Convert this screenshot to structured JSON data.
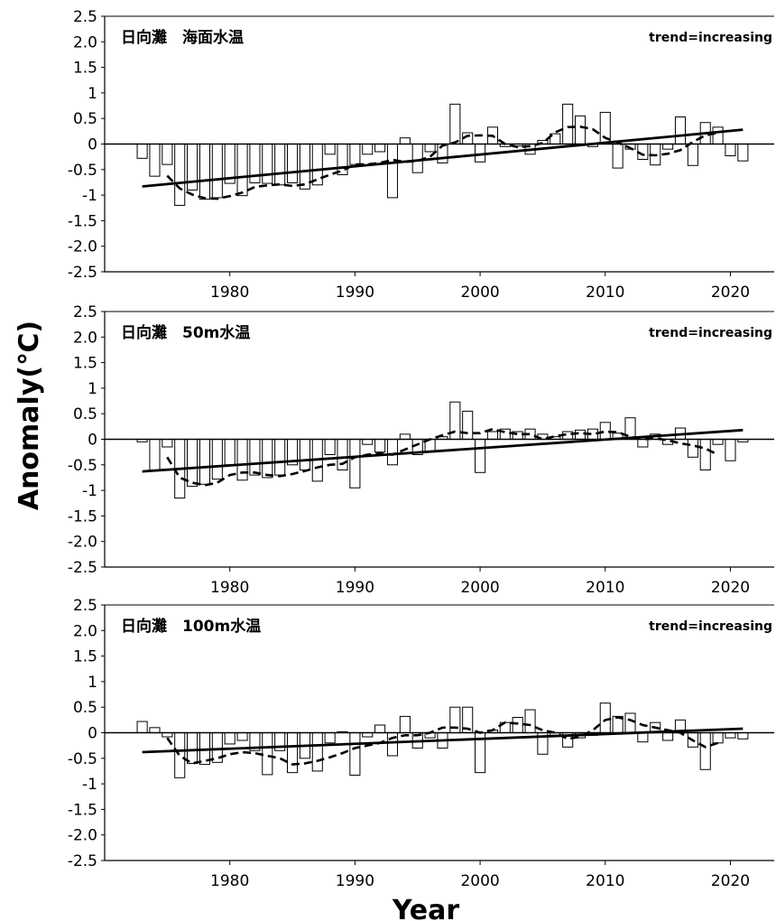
{
  "figure": {
    "ylabel": "Anomaly(℃)",
    "xlabel": "Year"
  },
  "chart_data": [
    {
      "type": "bar",
      "title": "日向灘　海面水温",
      "annotation": "trend=increasing",
      "xlim": [
        1970,
        2023.5
      ],
      "ylim": [
        -2.5,
        2.5
      ],
      "x_ticks": [
        1980,
        1990,
        2000,
        2010,
        2020
      ],
      "y_ticks": [
        2.5,
        2.0,
        1.5,
        1,
        0.5,
        0,
        -0.5,
        -1,
        -1.5,
        -2.0,
        -2.5
      ],
      "y_tick_labels": [
        "2.5",
        "2.0",
        "1.5",
        "1",
        "0.5",
        "0",
        "-0.5",
        "-1",
        "-1.5",
        "-2.0",
        "-2.5"
      ],
      "x": [
        1973,
        1974,
        1975,
        1976,
        1977,
        1978,
        1979,
        1980,
        1981,
        1982,
        1983,
        1984,
        1985,
        1986,
        1987,
        1988,
        1989,
        1990,
        1991,
        1992,
        1993,
        1994,
        1995,
        1996,
        1997,
        1998,
        1999,
        2000,
        2001,
        2002,
        2003,
        2004,
        2005,
        2006,
        2007,
        2008,
        2009,
        2010,
        2011,
        2012,
        2013,
        2014,
        2015,
        2016,
        2017,
        2018,
        2019,
        2020,
        2021
      ],
      "series": [
        {
          "kind": "bar",
          "values": [
            -0.28,
            -0.63,
            -0.4,
            -1.2,
            -0.9,
            -1.08,
            -1.05,
            -0.77,
            -1.01,
            -0.76,
            -0.77,
            -0.8,
            -0.76,
            -0.88,
            -0.8,
            -0.2,
            -0.6,
            -0.4,
            -0.2,
            -0.15,
            -1.05,
            0.12,
            -0.56,
            -0.15,
            -0.37,
            0.78,
            0.22,
            -0.35,
            0.33,
            -0.05,
            -0.04,
            -0.2,
            0.07,
            0.2,
            0.78,
            0.55,
            -0.05,
            0.62,
            -0.47,
            -0.1,
            -0.3,
            -0.41,
            -0.1,
            0.53,
            -0.42,
            0.42,
            0.33,
            -0.23,
            -0.33
          ]
        },
        {
          "kind": "moving_average",
          "values": [
            null,
            null,
            -0.62,
            -0.87,
            -0.99,
            -1.06,
            -1.07,
            -1.02,
            -0.95,
            -0.84,
            -0.81,
            -0.79,
            -0.82,
            -0.79,
            -0.69,
            -0.6,
            -0.52,
            -0.4,
            -0.4,
            -0.37,
            -0.31,
            -0.35,
            -0.33,
            -0.25,
            -0.03,
            0.03,
            0.16,
            0.17,
            0.16,
            0.0,
            -0.06,
            -0.04,
            0.02,
            0.23,
            0.33,
            0.34,
            0.29,
            0.12,
            0.03,
            -0.08,
            -0.21,
            -0.22,
            -0.19,
            -0.12,
            0.04,
            0.17,
            0.22,
            null,
            null
          ]
        },
        {
          "kind": "trend",
          "x": [
            1973,
            2021
          ],
          "values": [
            -0.83,
            0.28
          ]
        }
      ]
    },
    {
      "type": "bar",
      "title": "日向灘　50m水温",
      "annotation": "trend=increasing",
      "xlim": [
        1970,
        2023.5
      ],
      "ylim": [
        -2.5,
        2.5
      ],
      "x_ticks": [
        1980,
        1990,
        2000,
        2010,
        2020
      ],
      "y_ticks": [
        2.5,
        2.0,
        1.5,
        1,
        0.5,
        0,
        -0.5,
        -1,
        -1.5,
        -2.0,
        -2.5
      ],
      "y_tick_labels": [
        "2.5",
        "2.0",
        "1.5",
        "1",
        "0.5",
        "0",
        "-0.5",
        "-1",
        "-1.5",
        "-2.0",
        "-2.5"
      ],
      "x": [
        1973,
        1974,
        1975,
        1976,
        1977,
        1978,
        1979,
        1980,
        1981,
        1982,
        1983,
        1984,
        1985,
        1986,
        1987,
        1988,
        1989,
        1990,
        1991,
        1992,
        1993,
        1994,
        1995,
        1996,
        1997,
        1998,
        1999,
        2000,
        2001,
        2002,
        2003,
        2004,
        2005,
        2006,
        2007,
        2008,
        2009,
        2010,
        2011,
        2012,
        2013,
        2014,
        2015,
        2016,
        2017,
        2018,
        2019,
        2020,
        2021
      ],
      "series": [
        {
          "kind": "bar",
          "values": [
            -0.05,
            -0.6,
            -0.15,
            -1.15,
            -0.92,
            -0.88,
            -0.78,
            -0.5,
            -0.8,
            -0.7,
            -0.75,
            -0.7,
            -0.5,
            -0.6,
            -0.82,
            -0.3,
            -0.6,
            -0.95,
            -0.1,
            -0.25,
            -0.5,
            0.1,
            -0.3,
            -0.25,
            0.05,
            0.73,
            0.55,
            -0.65,
            0.15,
            0.2,
            0.15,
            0.2,
            0.1,
            0.05,
            0.15,
            0.18,
            0.2,
            0.33,
            0.12,
            0.42,
            -0.15,
            0.1,
            -0.1,
            0.22,
            -0.35,
            -0.6,
            -0.1,
            -0.42,
            -0.05
          ]
        },
        {
          "kind": "moving_average",
          "values": [
            null,
            null,
            -0.35,
            -0.75,
            -0.85,
            -0.9,
            -0.85,
            -0.7,
            -0.65,
            -0.65,
            -0.7,
            -0.72,
            -0.68,
            -0.62,
            -0.55,
            -0.5,
            -0.48,
            -0.35,
            -0.3,
            -0.28,
            -0.3,
            -0.2,
            -0.1,
            0.0,
            0.08,
            0.15,
            0.12,
            0.12,
            0.2,
            0.14,
            0.1,
            0.1,
            0.0,
            0.06,
            0.1,
            0.12,
            0.1,
            0.15,
            0.14,
            0.05,
            0.0,
            0.02,
            -0.02,
            -0.08,
            -0.12,
            -0.18,
            -0.3,
            null,
            null
          ]
        },
        {
          "kind": "trend",
          "x": [
            1973,
            2021
          ],
          "values": [
            -0.63,
            0.18
          ]
        }
      ]
    },
    {
      "type": "bar",
      "title": "日向灘　100m水温",
      "annotation": "trend=increasing",
      "xlim": [
        1970,
        2023.5
      ],
      "ylim": [
        -2.5,
        2.5
      ],
      "x_ticks": [
        1980,
        1990,
        2000,
        2010,
        2020
      ],
      "y_ticks": [
        2.5,
        2.0,
        1.5,
        1,
        0.5,
        0,
        -0.5,
        -1,
        -1.5,
        -2.0,
        -2.5
      ],
      "y_tick_labels": [
        "2.5",
        "2.0",
        "1.5",
        "1",
        "0.5",
        "0",
        "-0.5",
        "-1",
        "-1.5",
        "-2.0",
        "-2.5"
      ],
      "x": [
        1973,
        1974,
        1975,
        1976,
        1977,
        1978,
        1979,
        1980,
        1981,
        1982,
        1983,
        1984,
        1985,
        1986,
        1987,
        1988,
        1989,
        1990,
        1991,
        1992,
        1993,
        1994,
        1995,
        1996,
        1997,
        1998,
        1999,
        2000,
        2001,
        2002,
        2003,
        2004,
        2005,
        2006,
        2007,
        2008,
        2009,
        2010,
        2011,
        2012,
        2013,
        2014,
        2015,
        2016,
        2017,
        2018,
        2019,
        2020,
        2021
      ],
      "series": [
        {
          "kind": "bar",
          "values": [
            0.22,
            0.1,
            -0.08,
            -0.88,
            -0.6,
            -0.62,
            -0.58,
            -0.22,
            -0.15,
            -0.35,
            -0.82,
            -0.35,
            -0.78,
            -0.5,
            -0.75,
            -0.2,
            0.02,
            -0.83,
            -0.08,
            0.15,
            -0.45,
            0.32,
            -0.3,
            -0.1,
            -0.3,
            0.5,
            0.5,
            -0.78,
            0.05,
            0.2,
            0.3,
            0.45,
            -0.42,
            -0.05,
            -0.28,
            -0.1,
            -0.05,
            0.58,
            0.32,
            0.38,
            -0.18,
            0.2,
            -0.15,
            0.25,
            -0.28,
            -0.72,
            -0.2,
            -0.1,
            -0.12
          ]
        },
        {
          "kind": "moving_average",
          "values": [
            null,
            null,
            -0.1,
            -0.45,
            -0.6,
            -0.55,
            -0.5,
            -0.42,
            -0.38,
            -0.4,
            -0.45,
            -0.5,
            -0.62,
            -0.6,
            -0.55,
            -0.48,
            -0.4,
            -0.3,
            -0.25,
            -0.2,
            -0.1,
            -0.05,
            -0.05,
            0.0,
            0.1,
            0.1,
            0.08,
            0.0,
            0.05,
            0.2,
            0.18,
            0.15,
            0.05,
            0.0,
            -0.12,
            -0.08,
            0.05,
            0.25,
            0.3,
            0.25,
            0.15,
            0.1,
            0.05,
            0.0,
            -0.15,
            -0.28,
            -0.2,
            null,
            null
          ]
        },
        {
          "kind": "trend",
          "x": [
            1973,
            2021
          ],
          "values": [
            -0.38,
            0.08
          ]
        }
      ]
    }
  ]
}
